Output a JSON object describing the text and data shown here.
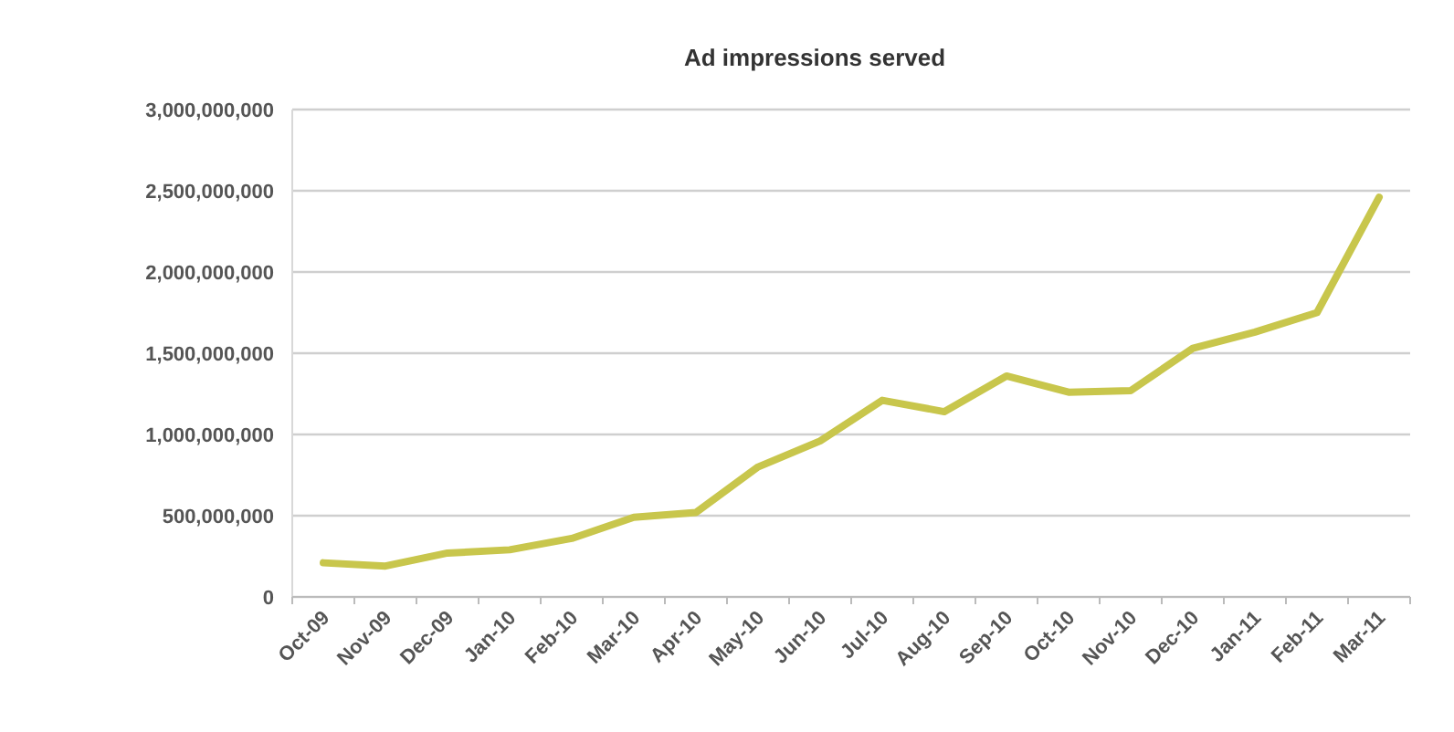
{
  "chart_data": {
    "type": "line",
    "title": "Ad impressions served",
    "categories": [
      "Oct-09",
      "Nov-09",
      "Dec-09",
      "Jan-10",
      "Feb-10",
      "Mar-10",
      "Apr-10",
      "May-10",
      "Jun-10",
      "Jul-10",
      "Aug-10",
      "Sep-10",
      "Oct-10",
      "Nov-10",
      "Dec-10",
      "Jan-11",
      "Feb-11",
      "Mar-11"
    ],
    "series": [
      {
        "color": "#c8c64c",
        "values": [
          210000000,
          190000000,
          270000000,
          290000000,
          360000000,
          490000000,
          520000000,
          800000000,
          960000000,
          1210000000,
          1140000000,
          1360000000,
          1260000000,
          1270000000,
          1530000000,
          1630000000,
          1750000000,
          2460000000
        ]
      }
    ],
    "ylim": [
      0,
      3000000000
    ],
    "yticks": [
      {
        "value": 0,
        "label": "0"
      },
      {
        "value": 500000000,
        "label": "500,000,000"
      },
      {
        "value": 1000000000,
        "label": "1,000,000,000"
      },
      {
        "value": 1500000000,
        "label": "1,500,000,000"
      },
      {
        "value": 2000000000,
        "label": "2,000,000,000"
      },
      {
        "value": 2500000000,
        "label": "2,500,000,000"
      },
      {
        "value": 3000000000,
        "label": "3,000,000,000"
      }
    ],
    "grid": "y",
    "marker": "none",
    "line_style": "solid"
  }
}
